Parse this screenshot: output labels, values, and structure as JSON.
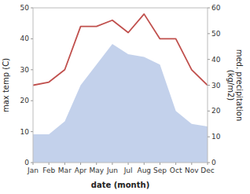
{
  "chart_data": {
    "type": "line",
    "xlabel": "date (month)",
    "ylabel": "max temp (C)",
    "y2label": "med. precipitation\n(kg/m2)",
    "categories": [
      "Jan",
      "Feb",
      "Mar",
      "Apr",
      "May",
      "Jun",
      "Jul",
      "Aug",
      "Sep",
      "Oct",
      "Nov",
      "Dec"
    ],
    "series": [
      {
        "type": "area",
        "axis": "y2",
        "color": "#b8c9e8",
        "values": [
          11,
          11,
          16,
          30,
          38,
          46,
          42,
          41,
          38,
          20,
          15,
          14
        ]
      },
      {
        "type": "line",
        "color": "#c0504d",
        "values": [
          25,
          26,
          30,
          44,
          44,
          46,
          42,
          48,
          40,
          40,
          30,
          25
        ]
      }
    ],
    "ylim": [
      0,
      50
    ],
    "yticks": [
      0,
      10,
      20,
      30,
      40,
      50
    ],
    "y2lim": [
      0,
      60
    ],
    "y2ticks": [
      0,
      10,
      20,
      30,
      40,
      50,
      60
    ],
    "grid": false
  }
}
